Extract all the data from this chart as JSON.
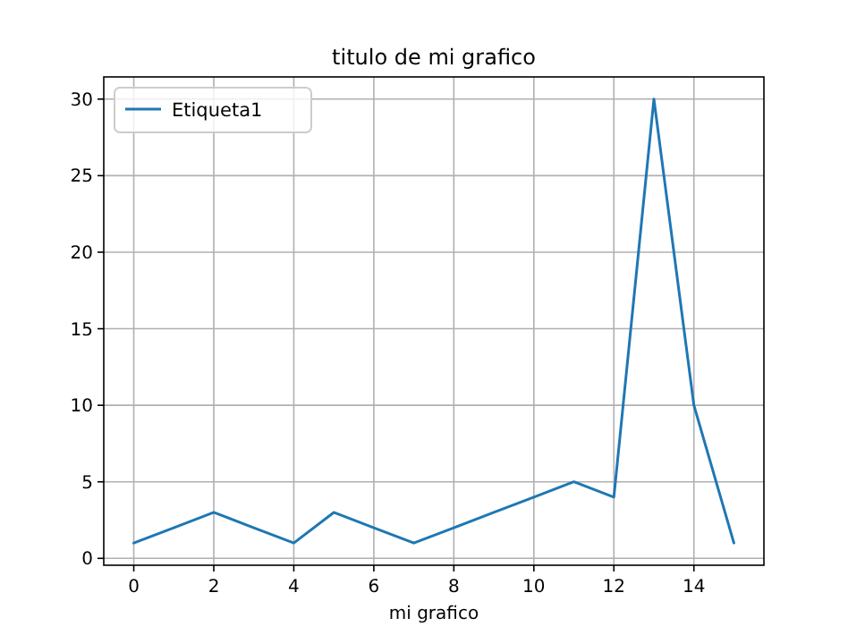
{
  "chart_data": {
    "type": "line",
    "title": "titulo de mi grafico",
    "xlabel": "mi grafico",
    "x": [
      0,
      1,
      2,
      3,
      4,
      5,
      6,
      7,
      8,
      9,
      10,
      11,
      12,
      13,
      14,
      15
    ],
    "series": [
      {
        "name": "Etiqueta1",
        "color": "#1f77b4",
        "values": [
          1,
          2,
          3,
          2,
          1,
          3,
          2,
          1,
          2,
          3,
          4,
          5,
          4,
          30,
          10,
          1
        ]
      }
    ],
    "xlim": [
      -0.75,
      15.75
    ],
    "xticks": [
      0,
      2,
      4,
      6,
      8,
      10,
      12,
      14
    ],
    "ylim": [
      -0.45,
      31.45
    ],
    "yticks": [
      0,
      5,
      10,
      15,
      20,
      25,
      30
    ],
    "grid": true,
    "legend": "top left",
    "marker": "none",
    "line_style": "solid"
  }
}
